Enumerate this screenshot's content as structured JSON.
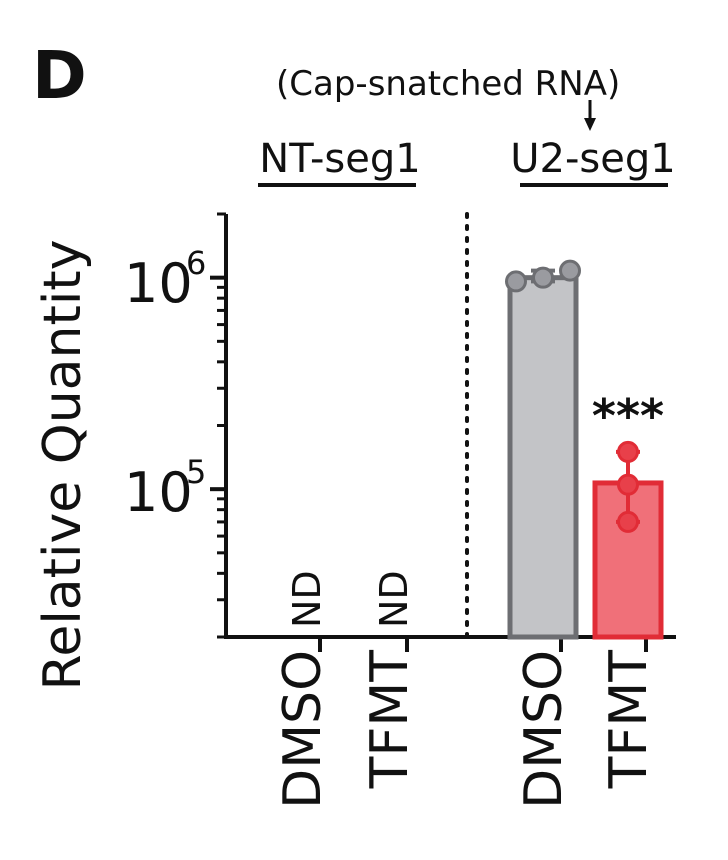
{
  "panel_label": "D",
  "annotation": "(Cap-snatched RNA)",
  "colors": {
    "axis": "#111111",
    "dmso_fill": "#c3c4c7",
    "dmso_edge": "#6d6e72",
    "tfmt_fill": "#f07079",
    "tfmt_edge": "#e12c36",
    "dmso_point": "#9a9ba0",
    "tfmt_point": "#e8404a"
  },
  "chart_data": {
    "type": "bar",
    "ylabel": "Relative Quantity",
    "yscale": "log",
    "ylim": [
      20000,
      2000000
    ],
    "ytick_labels": [
      {
        "base": "10",
        "exp": "6",
        "value": 1000000
      },
      {
        "base": "10",
        "exp": "5",
        "value": 100000
      }
    ],
    "groups": [
      {
        "name": "NT-seg1",
        "categories": [
          "DMSO",
          "TFMT"
        ]
      },
      {
        "name": "U2-seg1",
        "categories": [
          "DMSO",
          "TFMT"
        ]
      }
    ],
    "bars": [
      {
        "group": "NT-seg1",
        "category": "DMSO",
        "value": null,
        "label": "ND"
      },
      {
        "group": "NT-seg1",
        "category": "TFMT",
        "value": null,
        "label": "ND"
      },
      {
        "group": "U2-seg1",
        "category": "DMSO",
        "value": 1000000,
        "points": [
          960000,
          1080000,
          1000000
        ],
        "error": [
          960000,
          1080000
        ]
      },
      {
        "group": "U2-seg1",
        "category": "TFMT",
        "value": 107000,
        "points": [
          150000,
          105000,
          70000
        ],
        "error": [
          70000,
          150000
        ],
        "significance": "***"
      }
    ]
  }
}
